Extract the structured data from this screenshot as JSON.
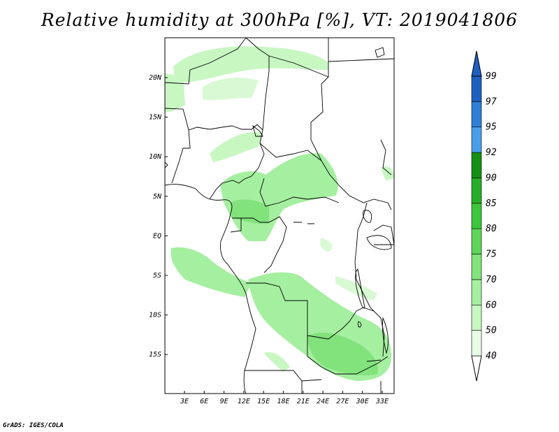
{
  "title": "Relative humidity at 300hPa [%], VT: 2019041806",
  "credit": "GrADS: IGES/COLA",
  "lat_ticks": [
    "20N",
    "15N",
    "10N",
    "5N",
    "EQ",
    "5S",
    "10S",
    "15S"
  ],
  "lon_ticks": [
    "3E",
    "6E",
    "9E",
    "12E",
    "15E",
    "18E",
    "21E",
    "24E",
    "27E",
    "30E",
    "33E"
  ],
  "colorbar": {
    "levels": [
      "40",
      "50",
      "60",
      "70",
      "75",
      "80",
      "85",
      "90",
      "92",
      "95",
      "97",
      "99"
    ],
    "colors": [
      "#ffffff",
      "#e8fde6",
      "#c8f7c2",
      "#a5efa0",
      "#82e27c",
      "#5fd65a",
      "#3cc63a",
      "#27ad27",
      "#168f16",
      "#4a9ee8",
      "#2f7fd6",
      "#1f5fbf"
    ]
  },
  "colors": {
    "land_fill": "#ffffff",
    "humid_light": "#c8f7c2",
    "humid_mid": "#a5efa0",
    "humid_dark": "#82e27c"
  }
}
